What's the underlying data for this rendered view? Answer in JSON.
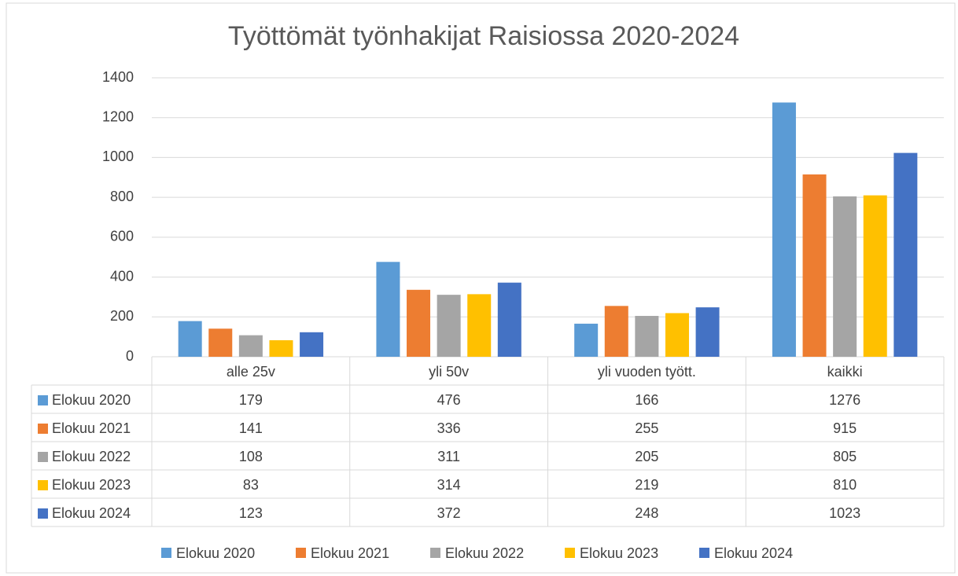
{
  "chart_data": {
    "type": "bar",
    "title": "Työttömät työnhakijat Raisiossa 2020-2024",
    "categories": [
      "alle 25v",
      "yli 50v",
      "yli vuoden tyött.",
      "kaikki"
    ],
    "series": [
      {
        "name": "Elokuu 2020",
        "color": "#5b9bd5",
        "values": [
          179,
          476,
          166,
          1276
        ]
      },
      {
        "name": "Elokuu 2021",
        "color": "#ed7d31",
        "values": [
          141,
          336,
          255,
          915
        ]
      },
      {
        "name": "Elokuu 2022",
        "color": "#a5a5a5",
        "values": [
          108,
          311,
          205,
          805
        ]
      },
      {
        "name": "Elokuu 2023",
        "color": "#ffc000",
        "values": [
          83,
          314,
          219,
          810
        ]
      },
      {
        "name": "Elokuu 2024",
        "color": "#4472c4",
        "values": [
          123,
          372,
          248,
          1023
        ]
      }
    ],
    "ylim": [
      0,
      1400
    ],
    "yticks": [
      0,
      200,
      400,
      600,
      800,
      1000,
      1200,
      1400
    ],
    "grid": true,
    "legend": "bottom",
    "data_table": true
  }
}
